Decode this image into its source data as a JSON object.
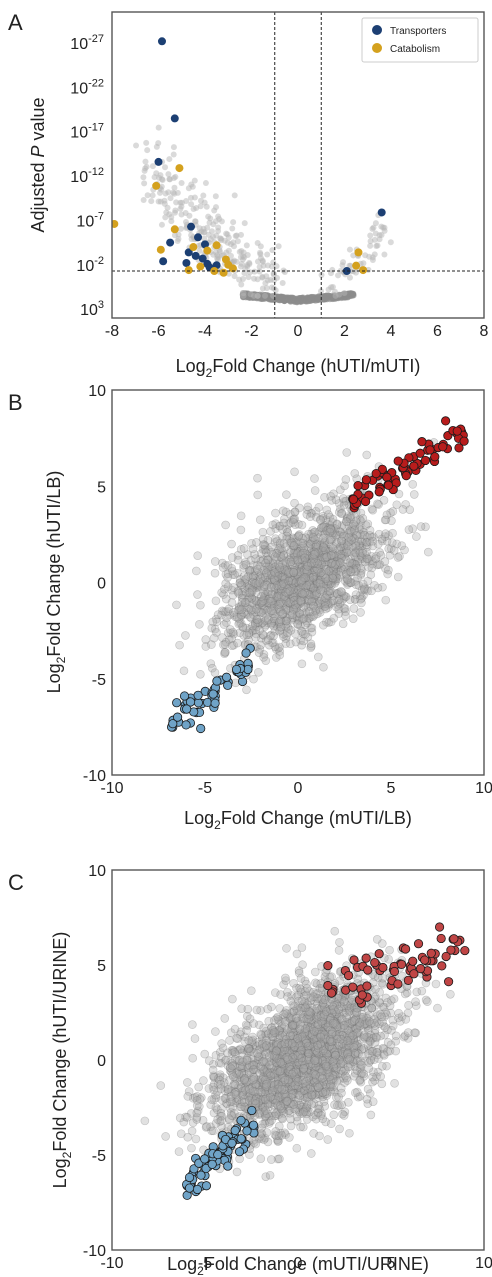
{
  "chart_data": [
    {
      "panel": "A",
      "type": "scatter",
      "xlabel_prefix": "Log",
      "xlabel_sub": "2",
      "xlabel_rest": "Fold Change (hUTI/mUTI)",
      "ylabel_prefix": "Adjusted ",
      "ylabel_italic": "P",
      "ylabel_rest": " value",
      "xlim": [
        -8,
        8
      ],
      "x_ticks": [
        "-8",
        "-6",
        "-4",
        "-2",
        "0",
        "2",
        "4",
        "6",
        "8"
      ],
      "y_ticks": [
        {
          "base": "10",
          "exp": "-27",
          "value": -27
        },
        {
          "base": "10",
          "exp": "-22",
          "value": -22
        },
        {
          "base": "10",
          "exp": "-17",
          "value": -17
        },
        {
          "base": "10",
          "exp": "-12",
          "value": -12
        },
        {
          "base": "10",
          "exp": "-7",
          "value": -7
        },
        {
          "base": "10",
          "exp": "-2",
          "value": -2
        },
        {
          "base": "10",
          "exp": "3",
          "value": 3
        }
      ],
      "ylim_log10": [
        4.0,
        -30.5
      ],
      "y_scale": "log (reversed: smaller p-values on top)",
      "vlines_x": [
        -1,
        1
      ],
      "hline_log10": -1.3,
      "legend": {
        "placement": "top-right",
        "entries": [
          {
            "label": "Transporters",
            "color": "#1c3f73"
          },
          {
            "label": "Catabolism",
            "color": "#d4a11e"
          }
        ]
      },
      "series": [
        {
          "name": "Transporters",
          "color": "#1c3f73",
          "points": [
            [
              -5.85,
              -27.2
            ],
            [
              -5.3,
              -18.5
            ],
            [
              -6.0,
              -13.6
            ],
            [
              -4.6,
              -6.3
            ],
            [
              -4.3,
              -5.1
            ],
            [
              -4.0,
              -4.3
            ],
            [
              -4.7,
              -3.4
            ],
            [
              -4.4,
              -3.0
            ],
            [
              -4.1,
              -2.7
            ],
            [
              -5.8,
              -2.4
            ],
            [
              -4.8,
              -2.2
            ],
            [
              -3.9,
              -2.1
            ],
            [
              -3.5,
              -1.95
            ],
            [
              -5.5,
              -4.5
            ],
            [
              -3.8,
              -1.7
            ],
            [
              3.6,
              -7.9
            ],
            [
              2.1,
              -1.3
            ]
          ]
        },
        {
          "name": "Catabolism",
          "color": "#d4a11e",
          "points": [
            [
              -7.9,
              -6.6
            ],
            [
              -5.1,
              -12.9
            ],
            [
              -6.1,
              -10.9
            ],
            [
              -5.3,
              -6.0
            ],
            [
              -4.5,
              -4.0
            ],
            [
              -3.5,
              -4.2
            ],
            [
              -3.9,
              -3.6
            ],
            [
              -3.1,
              -2.6
            ],
            [
              -3.0,
              -2.0
            ],
            [
              -2.8,
              -1.6
            ],
            [
              -4.7,
              -1.4
            ],
            [
              -4.2,
              -1.8
            ],
            [
              -3.6,
              -1.3
            ],
            [
              -3.2,
              -1.1
            ],
            [
              -5.9,
              -3.7
            ],
            [
              2.6,
              -3.4
            ],
            [
              2.5,
              -1.9
            ],
            [
              2.8,
              -1.4
            ]
          ]
        }
      ]
    },
    {
      "panel": "B",
      "type": "scatter",
      "xlabel_prefix": "Log",
      "xlabel_sub": "2",
      "xlabel_rest": "Fold Change (mUTI/LB)",
      "ylabel_prefix": "Log",
      "ylabel_sub": "2",
      "ylabel_rest": "Fold Change (hUTI/LB)",
      "xlim": [
        -10,
        10
      ],
      "ylim": [
        -10,
        10
      ],
      "x_ticks": [
        "-10",
        "-5",
        "0",
        "5",
        "10"
      ],
      "y_ticks": [
        "-10",
        "-5",
        "0",
        "5",
        "10"
      ],
      "series": [
        {
          "name": "",
          "color": "#b81c1c",
          "seed": 11,
          "count": 70,
          "x_range": [
            2.8,
            9.0
          ],
          "y_range": [
            3.0,
            9.2
          ],
          "slope": 0.9,
          "spread": 1.2
        },
        {
          "name": "",
          "color": "#6fa3c7",
          "seed": 12,
          "count": 55,
          "x_range": [
            -6.8,
            -2.5
          ],
          "y_range": [
            -8.7,
            -2.8
          ],
          "slope": 0.75,
          "spread": 1.0
        },
        {
          "name": "",
          "color": "#9c9c9c",
          "seed": 13,
          "count": 1600,
          "center": [
            0.3,
            0.4
          ],
          "slope": 0.78,
          "sd_major": 2.6,
          "sd_minor": 1.35
        }
      ]
    },
    {
      "panel": "C",
      "type": "scatter",
      "xlabel_prefix": "Log",
      "xlabel_sub": "2",
      "xlabel_rest": "Fold Change (mUTI/URINE)",
      "ylabel_prefix": "Log",
      "ylabel_sub": "2",
      "ylabel_rest": "Fold Change (hUTI/URINE)",
      "xlim": [
        -10,
        10
      ],
      "ylim": [
        -10,
        10
      ],
      "x_ticks": [
        "-10",
        "-5",
        "0",
        "5",
        "10"
      ],
      "y_ticks": [
        "-10",
        "-5",
        "0",
        "5",
        "10"
      ],
      "series": [
        {
          "name": "",
          "color": "#c04545",
          "seed": 21,
          "count": 65,
          "x_range": [
            1.6,
            9.0
          ],
          "y_range": [
            2.2,
            7.4
          ],
          "slope": 0.5,
          "spread": 1.3
        },
        {
          "name": "",
          "color": "#6fa3c7",
          "seed": 22,
          "count": 85,
          "x_range": [
            -6.0,
            -2.3
          ],
          "y_range": [
            -7.4,
            -2.3
          ],
          "slope": 0.9,
          "spread": 1.1
        },
        {
          "name": "",
          "color": "#9c9c9c",
          "seed": 23,
          "count": 2200,
          "center": [
            0.2,
            0.1
          ],
          "slope": 0.72,
          "sd_major": 2.8,
          "sd_minor": 1.45
        }
      ]
    }
  ]
}
